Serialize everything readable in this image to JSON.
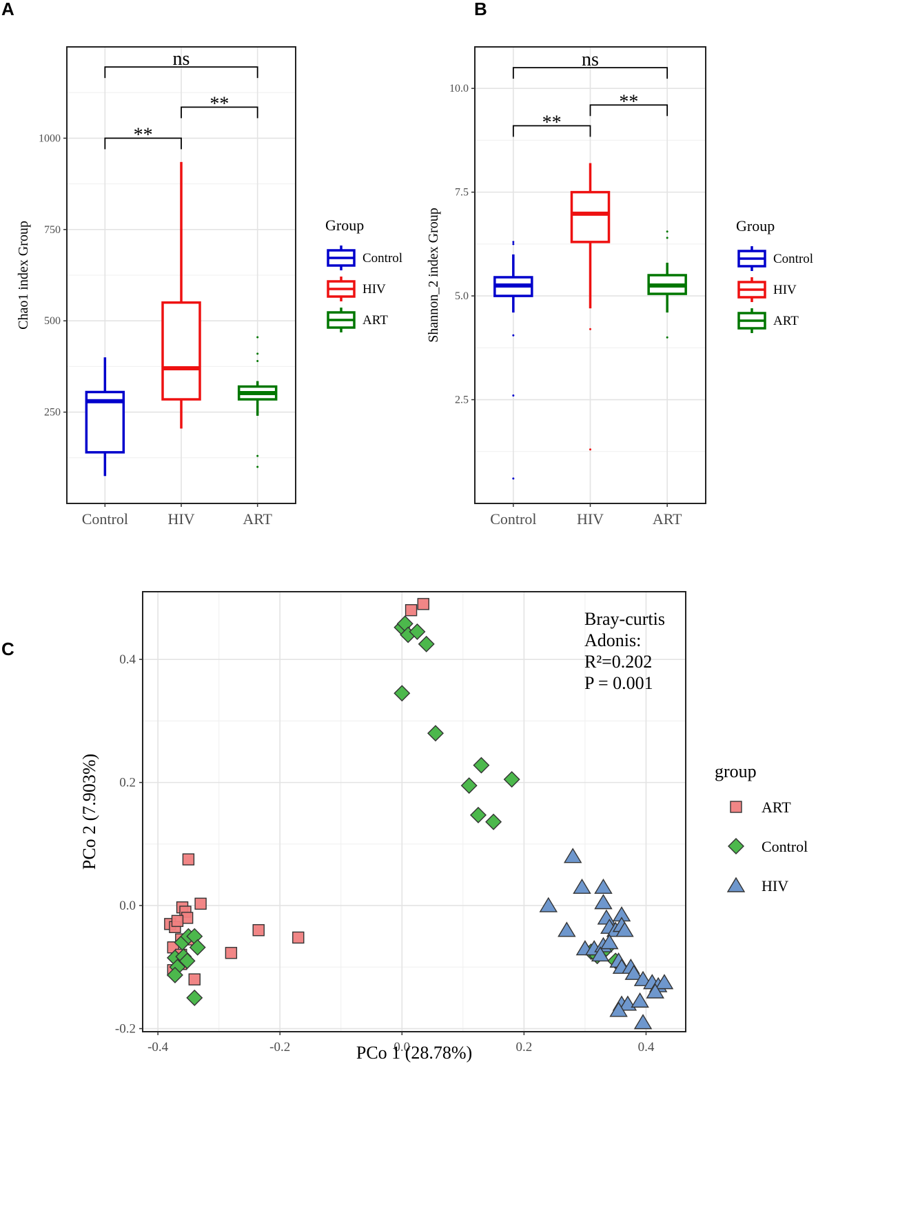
{
  "panels": {
    "a": "A",
    "b": "B",
    "c": "C"
  },
  "chart_data": [
    {
      "type": "box",
      "panel": "A",
      "ylabel": "Chao1 index Group",
      "categories": [
        "Control",
        "HIV",
        "ART"
      ],
      "colors": [
        "#0000CC",
        "#EE1111",
        "#007700"
      ],
      "yticks": [
        250,
        500,
        750,
        1000
      ],
      "yticklabels": [
        "250",
        "500",
        "750",
        "1000"
      ],
      "ylim": [
        0,
        1250
      ],
      "boxes": [
        {
          "group": "Control",
          "whisker_low": 75,
          "q1": 140,
          "median": 280,
          "q3": 305,
          "whisker_high": 400,
          "outliers": []
        },
        {
          "group": "HIV",
          "whisker_low": 205,
          "q1": 285,
          "median": 370,
          "q3": 550,
          "whisker_high": 935,
          "outliers": []
        },
        {
          "group": "ART",
          "whisker_low": 240,
          "q1": 285,
          "median": 302,
          "q3": 320,
          "whisker_high": 335,
          "outliers": [
            100,
            130,
            390,
            410,
            455
          ]
        }
      ],
      "comparisons": [
        {
          "from": "Control",
          "to": "HIV",
          "label": "**",
          "y": 1000
        },
        {
          "from": "HIV",
          "to": "ART",
          "label": "**",
          "y": 1085
        },
        {
          "from": "Control",
          "to": "ART",
          "label": "ns",
          "y": 1195
        }
      ],
      "legend": {
        "title": "Group",
        "items": [
          "Control",
          "HIV",
          "ART"
        ]
      }
    },
    {
      "type": "box",
      "panel": "B",
      "ylabel": "Shannon_2 index Group",
      "categories": [
        "Control",
        "HIV",
        "ART"
      ],
      "colors": [
        "#0000CC",
        "#EE1111",
        "#007700"
      ],
      "yticks": [
        2.5,
        5.0,
        7.5,
        10.0
      ],
      "yticklabels": [
        "2.5",
        "5.0",
        "7.5",
        "10.0"
      ],
      "ylim": [
        0.0,
        11.0
      ],
      "boxes": [
        {
          "group": "Control",
          "whisker_low": 4.6,
          "q1": 5.0,
          "median": 5.25,
          "q3": 5.45,
          "whisker_high": 6.0,
          "outliers": [
            0.6,
            2.6,
            4.05,
            6.25,
            6.3
          ]
        },
        {
          "group": "HIV",
          "whisker_low": 4.7,
          "q1": 6.3,
          "median": 6.98,
          "q3": 7.5,
          "whisker_high": 8.2,
          "outliers": [
            1.3,
            4.2
          ]
        },
        {
          "group": "ART",
          "whisker_low": 4.6,
          "q1": 5.05,
          "median": 5.25,
          "q3": 5.5,
          "whisker_high": 5.8,
          "outliers": [
            4.0,
            6.4,
            6.55
          ]
        }
      ],
      "comparisons": [
        {
          "from": "Control",
          "to": "HIV",
          "label": "**",
          "y": 9.1
        },
        {
          "from": "HIV",
          "to": "ART",
          "label": "**",
          "y": 9.6
        },
        {
          "from": "Control",
          "to": "ART",
          "label": "ns",
          "y": 10.5
        }
      ],
      "legend": {
        "title": "Group",
        "items": [
          "Control",
          "HIV",
          "ART"
        ]
      }
    },
    {
      "type": "scatter",
      "panel": "C",
      "xlabel": "PCo 1 (28.78%)",
      "ylabel": "PCo 2 (7.903%)",
      "xlim": [
        -0.425,
        0.465
      ],
      "ylim": [
        -0.205,
        0.51
      ],
      "xticks": [
        -0.4,
        -0.2,
        0.0,
        0.2,
        0.4
      ],
      "xticklabels": [
        "-0.4",
        "-0.2",
        "0.0",
        "0.2",
        "0.4"
      ],
      "yticks": [
        -0.2,
        0.0,
        0.2,
        0.4
      ],
      "yticklabels": [
        "-0.2",
        "0.0",
        "0.2",
        "0.4"
      ],
      "annotation": [
        "Bray-curtis",
        "Adonis:",
        "R²=0.202",
        "P = 0.001"
      ],
      "legend": {
        "title": "group",
        "items": [
          "ART",
          "Control",
          "HIV"
        ]
      },
      "series": [
        {
          "name": "ART",
          "marker": "square",
          "color": "#F08080",
          "points": [
            [
              0.015,
              0.48
            ],
            [
              0.035,
              0.49
            ],
            [
              -0.35,
              0.075
            ],
            [
              -0.33,
              0.003
            ],
            [
              -0.36,
              -0.003
            ],
            [
              -0.355,
              -0.01
            ],
            [
              -0.352,
              -0.02
            ],
            [
              -0.38,
              -0.03
            ],
            [
              -0.372,
              -0.035
            ],
            [
              -0.368,
              -0.025
            ],
            [
              -0.362,
              -0.055
            ],
            [
              -0.35,
              -0.055
            ],
            [
              -0.375,
              -0.068
            ],
            [
              -0.362,
              -0.08
            ],
            [
              -0.362,
              -0.095
            ],
            [
              -0.375,
              -0.105
            ],
            [
              -0.34,
              -0.12
            ],
            [
              -0.28,
              -0.077
            ],
            [
              -0.235,
              -0.04
            ],
            [
              -0.17,
              -0.052
            ]
          ]
        },
        {
          "name": "Control",
          "marker": "diamond",
          "color": "#4CB84C",
          "points": [
            [
              0.0,
              0.452
            ],
            [
              0.005,
              0.458
            ],
            [
              0.01,
              0.44
            ],
            [
              0.025,
              0.445
            ],
            [
              0.04,
              0.425
            ],
            [
              0.0,
              0.345
            ],
            [
              0.055,
              0.28
            ],
            [
              0.13,
              0.228
            ],
            [
              0.11,
              0.195
            ],
            [
              0.18,
              0.205
            ],
            [
              0.125,
              0.147
            ],
            [
              0.15,
              0.136
            ],
            [
              -0.36,
              -0.06
            ],
            [
              -0.35,
              -0.05
            ],
            [
              -0.34,
              -0.05
            ],
            [
              -0.335,
              -0.068
            ],
            [
              -0.372,
              -0.085
            ],
            [
              -0.358,
              -0.083
            ],
            [
              -0.352,
              -0.09
            ],
            [
              -0.368,
              -0.1
            ],
            [
              -0.372,
              -0.113
            ],
            [
              -0.34,
              -0.15
            ],
            [
              0.31,
              -0.075
            ],
            [
              0.32,
              -0.082
            ],
            [
              0.335,
              -0.07
            ],
            [
              0.35,
              -0.09
            ]
          ]
        },
        {
          "name": "HIV",
          "marker": "triangle",
          "color": "#6E97CD",
          "points": [
            [
              0.28,
              0.08
            ],
            [
              0.295,
              0.03
            ],
            [
              0.33,
              0.03
            ],
            [
              0.24,
              0.0
            ],
            [
              0.33,
              0.005
            ],
            [
              0.36,
              -0.015
            ],
            [
              0.335,
              -0.02
            ],
            [
              0.27,
              -0.04
            ],
            [
              0.34,
              -0.035
            ],
            [
              0.35,
              -0.04
            ],
            [
              0.36,
              -0.032
            ],
            [
              0.365,
              -0.04
            ],
            [
              0.3,
              -0.07
            ],
            [
              0.315,
              -0.07
            ],
            [
              0.33,
              -0.065
            ],
            [
              0.325,
              -0.08
            ],
            [
              0.34,
              -0.06
            ],
            [
              0.355,
              -0.09
            ],
            [
              0.36,
              -0.1
            ],
            [
              0.375,
              -0.1
            ],
            [
              0.38,
              -0.11
            ],
            [
              0.395,
              -0.12
            ],
            [
              0.41,
              -0.125
            ],
            [
              0.42,
              -0.13
            ],
            [
              0.43,
              -0.125
            ],
            [
              0.415,
              -0.14
            ],
            [
              0.36,
              -0.16
            ],
            [
              0.37,
              -0.16
            ],
            [
              0.355,
              -0.17
            ],
            [
              0.39,
              -0.155
            ],
            [
              0.395,
              -0.19
            ]
          ]
        }
      ]
    }
  ]
}
